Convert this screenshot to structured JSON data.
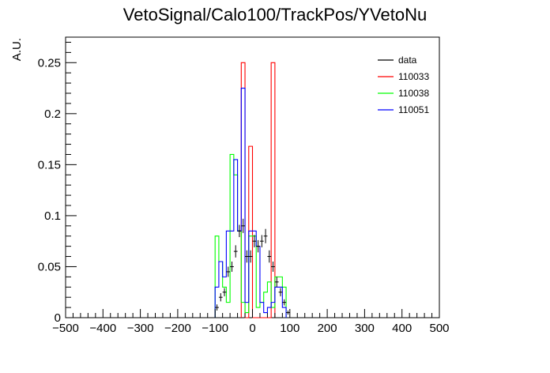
{
  "chart_data": {
    "type": "histogram",
    "title": "VetoSignal/Calo100/TrackPos/YVetoNu",
    "ylabel": "A.U.",
    "xlabel": "",
    "xlim": [
      -500,
      500
    ],
    "ylim": [
      0,
      0.275
    ],
    "grid": false,
    "legend_position": "top-right",
    "x_ticks": [
      -500,
      -400,
      -300,
      -200,
      -100,
      0,
      100,
      200,
      300,
      400,
      500
    ],
    "y_ticks": [
      0,
      0.05,
      0.1,
      0.15,
      0.2,
      0.25
    ],
    "x_tick_labels": [
      "−500",
      "−400",
      "−300",
      "−200",
      "−100",
      "0",
      "100",
      "200",
      "300",
      "400",
      "500"
    ],
    "y_tick_labels": [
      "0",
      "0.05",
      "0.1",
      "0.15",
      "0.2",
      "0.25"
    ],
    "bin_width": 10,
    "series": [
      {
        "name": "data",
        "style": "points",
        "color": "#000000",
        "points": [
          {
            "x": -95,
            "y": 0.01,
            "err": 0.003
          },
          {
            "x": -85,
            "y": 0.02,
            "err": 0.004
          },
          {
            "x": -75,
            "y": 0.025,
            "err": 0.004
          },
          {
            "x": -65,
            "y": 0.045,
            "err": 0.005
          },
          {
            "x": -55,
            "y": 0.05,
            "err": 0.005
          },
          {
            "x": -45,
            "y": 0.065,
            "err": 0.006
          },
          {
            "x": -35,
            "y": 0.085,
            "err": 0.006
          },
          {
            "x": -25,
            "y": 0.09,
            "err": 0.007
          },
          {
            "x": -15,
            "y": 0.06,
            "err": 0.006
          },
          {
            "x": -5,
            "y": 0.06,
            "err": 0.006
          },
          {
            "x": 5,
            "y": 0.075,
            "err": 0.006
          },
          {
            "x": 15,
            "y": 0.07,
            "err": 0.006
          },
          {
            "x": 25,
            "y": 0.075,
            "err": 0.006
          },
          {
            "x": 35,
            "y": 0.08,
            "err": 0.007
          },
          {
            "x": 45,
            "y": 0.06,
            "err": 0.006
          },
          {
            "x": 55,
            "y": 0.05,
            "err": 0.005
          },
          {
            "x": 65,
            "y": 0.035,
            "err": 0.005
          },
          {
            "x": 75,
            "y": 0.025,
            "err": 0.004
          },
          {
            "x": 85,
            "y": 0.015,
            "err": 0.003
          },
          {
            "x": 95,
            "y": 0.005,
            "err": 0.002
          }
        ]
      },
      {
        "name": "110033",
        "style": "step",
        "color": "#ff0000",
        "bins": [
          {
            "lo": -30,
            "hi": -20,
            "y": 0.25
          },
          {
            "lo": -20,
            "hi": -10,
            "y": 0.0
          },
          {
            "lo": -10,
            "hi": 0,
            "y": 0.168
          },
          {
            "lo": 0,
            "hi": 50,
            "y": 0.0
          },
          {
            "lo": 50,
            "hi": 60,
            "y": 0.25
          }
        ]
      },
      {
        "name": "110038",
        "style": "step",
        "color": "#00ff00",
        "bins": [
          {
            "lo": -100,
            "hi": -90,
            "y": 0.08
          },
          {
            "lo": -90,
            "hi": -80,
            "y": 0.055
          },
          {
            "lo": -80,
            "hi": -70,
            "y": 0.03
          },
          {
            "lo": -70,
            "hi": -60,
            "y": 0.015
          },
          {
            "lo": -60,
            "hi": -50,
            "y": 0.16
          },
          {
            "lo": -50,
            "hi": -40,
            "y": 0.14
          },
          {
            "lo": -40,
            "hi": -30,
            "y": 0.085
          },
          {
            "lo": -30,
            "hi": -20,
            "y": 0.015
          },
          {
            "lo": -20,
            "hi": -10,
            "y": 0.005
          },
          {
            "lo": -10,
            "hi": 0,
            "y": 0.08
          },
          {
            "lo": 0,
            "hi": 10,
            "y": 0.08
          },
          {
            "lo": 10,
            "hi": 20,
            "y": 0.01
          },
          {
            "lo": 20,
            "hi": 30,
            "y": 0.015
          },
          {
            "lo": 30,
            "hi": 40,
            "y": 0.025
          },
          {
            "lo": 40,
            "hi": 50,
            "y": 0.035
          },
          {
            "lo": 50,
            "hi": 60,
            "y": 0.01
          },
          {
            "lo": 60,
            "hi": 70,
            "y": 0.04
          },
          {
            "lo": 70,
            "hi": 80,
            "y": 0.04
          },
          {
            "lo": 80,
            "hi": 90,
            "y": 0.03
          }
        ]
      },
      {
        "name": "110051",
        "style": "step",
        "color": "#0000ff",
        "bins": [
          {
            "lo": -100,
            "hi": -90,
            "y": 0.03
          },
          {
            "lo": -90,
            "hi": -80,
            "y": 0.055
          },
          {
            "lo": -80,
            "hi": -70,
            "y": 0.04
          },
          {
            "lo": -70,
            "hi": -60,
            "y": 0.085
          },
          {
            "lo": -60,
            "hi": -50,
            "y": 0.085
          },
          {
            "lo": -50,
            "hi": -40,
            "y": 0.155
          },
          {
            "lo": -40,
            "hi": -30,
            "y": 0.085
          },
          {
            "lo": -30,
            "hi": -20,
            "y": 0.225
          },
          {
            "lo": -20,
            "hi": -10,
            "y": 0.015
          },
          {
            "lo": -10,
            "hi": 0,
            "y": 0.085
          },
          {
            "lo": 0,
            "hi": 10,
            "y": 0.085
          },
          {
            "lo": 10,
            "hi": 20,
            "y": 0.07
          },
          {
            "lo": 20,
            "hi": 30,
            "y": 0.015
          },
          {
            "lo": 30,
            "hi": 40,
            "y": 0.005
          },
          {
            "lo": 40,
            "hi": 50,
            "y": 0.01
          },
          {
            "lo": 50,
            "hi": 60,
            "y": 0.015
          },
          {
            "lo": 60,
            "hi": 70,
            "y": 0.03
          },
          {
            "lo": 70,
            "hi": 80,
            "y": 0.03
          },
          {
            "lo": 80,
            "hi": 90,
            "y": 0.01
          }
        ]
      }
    ]
  }
}
